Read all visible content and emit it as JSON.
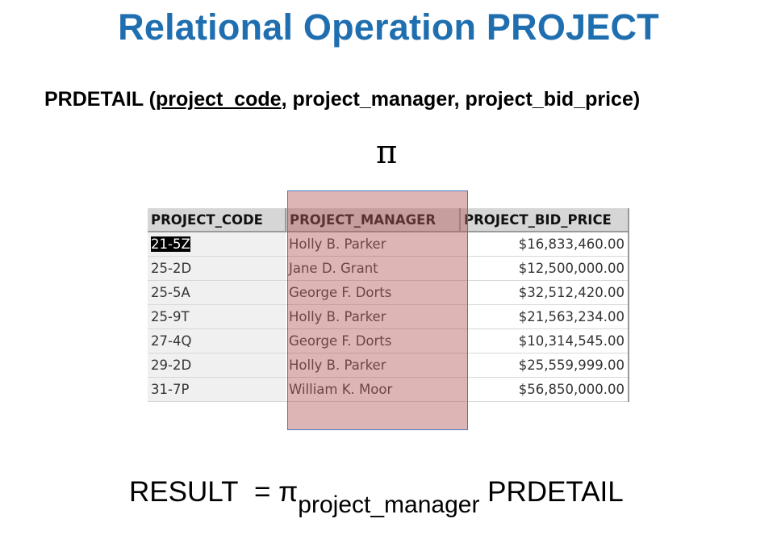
{
  "title": "Relational Operation PROJECT",
  "schema": {
    "name": "PRDETAIL",
    "open": " (",
    "key": "project_code",
    "rest": ", project_manager, project_bid_price)"
  },
  "pi_symbol": "π",
  "table": {
    "headers": [
      "PROJECT_CODE",
      "PROJECT_MANAGER",
      "PROJECT_BID_PRICE"
    ],
    "rows": [
      [
        "21-5Z",
        "Holly B. Parker",
        "$16,833,460.00"
      ],
      [
        "25-2D",
        "Jane D. Grant",
        "$12,500,000.00"
      ],
      [
        "25-5A",
        "George F. Dorts",
        "$32,512,420.00"
      ],
      [
        "25-9T",
        "Holly B. Parker",
        "$21,563,234.00"
      ],
      [
        "27-4Q",
        "George F. Dorts",
        "$10,314,545.00"
      ],
      [
        "29-2D",
        "Holly B. Parker",
        "$25,559,999.00"
      ],
      [
        "31-7P",
        "William K. Moor",
        "$56,850,000.00"
      ]
    ]
  },
  "formula": {
    "lhs": "RESULT",
    "eq": "=",
    "pi": "π",
    "subscript": "project_manager",
    "relation": "PRDETAIL"
  }
}
